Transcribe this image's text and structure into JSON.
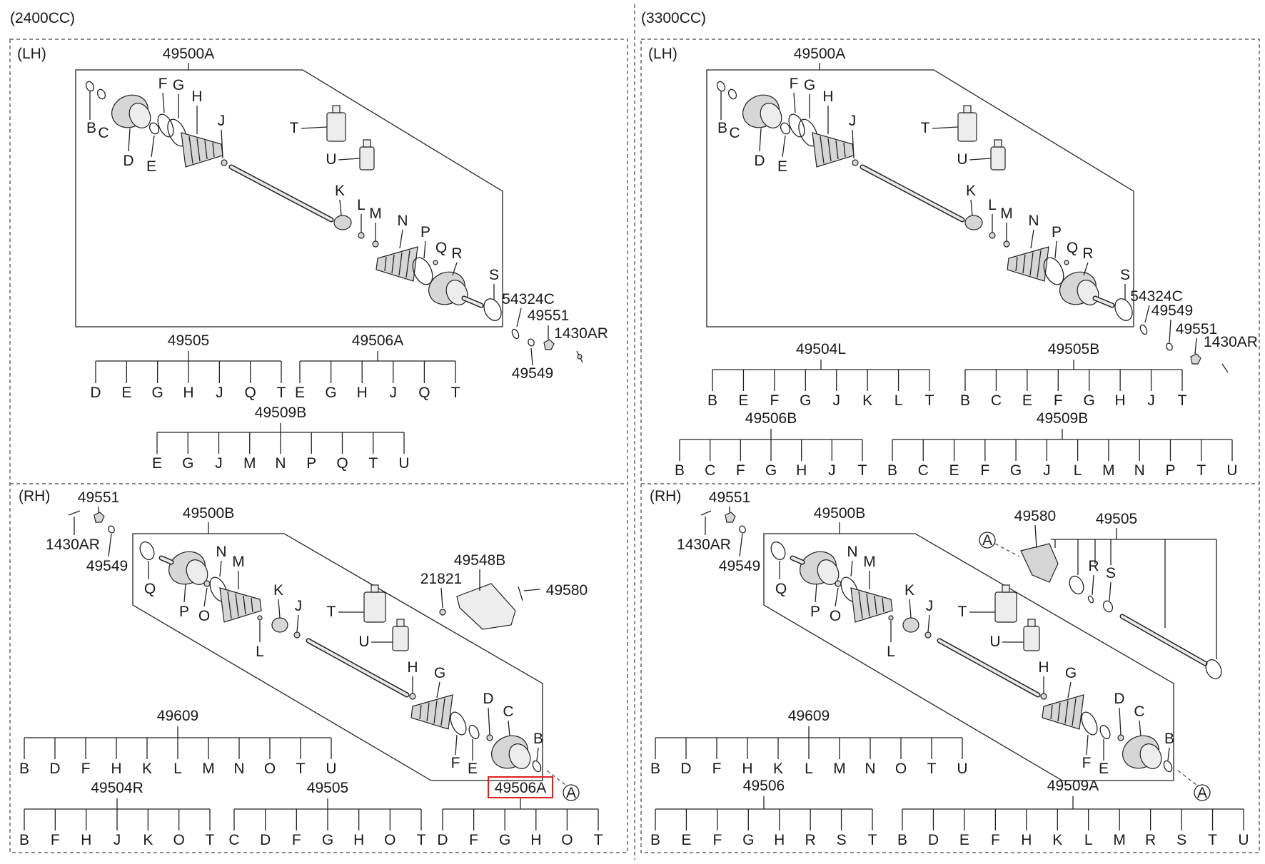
{
  "headers": {
    "left": "(2400CC)",
    "right": "(3300CC)"
  },
  "panels": [
    {
      "id": "tl",
      "side_label": "(LH)",
      "assembly": "49500A",
      "parts": [
        {
          "l": "B"
        },
        {
          "l": "C"
        },
        {
          "l": "D"
        },
        {
          "l": "E"
        },
        {
          "l": "F"
        },
        {
          "l": "G"
        },
        {
          "l": "H"
        },
        {
          "l": "J"
        },
        {
          "l": "K"
        },
        {
          "l": "L"
        },
        {
          "l": "M"
        },
        {
          "l": "N"
        },
        {
          "l": "P"
        },
        {
          "l": "Q"
        },
        {
          "l": "R"
        },
        {
          "l": "S"
        },
        {
          "l": "T"
        },
        {
          "l": "U"
        }
      ],
      "extras": [
        {
          "l": "54324C"
        },
        {
          "l": "49551"
        },
        {
          "l": "1430AR"
        },
        {
          "l": "49549"
        }
      ],
      "kits": [
        {
          "code": "49505",
          "items": [
            "D",
            "E",
            "G",
            "H",
            "J",
            "Q",
            "T"
          ]
        },
        {
          "code": "49506A",
          "items": [
            "E",
            "G",
            "H",
            "J",
            "Q",
            "T"
          ]
        },
        {
          "code": "49509B",
          "items": [
            "E",
            "G",
            "J",
            "M",
            "N",
            "P",
            "Q",
            "T",
            "U"
          ]
        }
      ]
    },
    {
      "id": "tr",
      "side_label": "(LH)",
      "assembly": "49500A",
      "parts": [
        {
          "l": "B"
        },
        {
          "l": "C"
        },
        {
          "l": "D"
        },
        {
          "l": "E"
        },
        {
          "l": "F"
        },
        {
          "l": "G"
        },
        {
          "l": "H"
        },
        {
          "l": "J"
        },
        {
          "l": "K"
        },
        {
          "l": "L"
        },
        {
          "l": "M"
        },
        {
          "l": "N"
        },
        {
          "l": "P"
        },
        {
          "l": "Q"
        },
        {
          "l": "R"
        },
        {
          "l": "S"
        },
        {
          "l": "T"
        },
        {
          "l": "U"
        }
      ],
      "extras": [
        {
          "l": "54324C"
        },
        {
          "l": "49549"
        },
        {
          "l": "49551"
        },
        {
          "l": "1430AR"
        }
      ],
      "kits": [
        {
          "code": "49504L",
          "items": [
            "B",
            "E",
            "F",
            "G",
            "J",
            "K",
            "L",
            "T"
          ]
        },
        {
          "code": "49505B",
          "items": [
            "B",
            "C",
            "E",
            "F",
            "G",
            "H",
            "J",
            "T"
          ]
        },
        {
          "code": "49506B",
          "items": [
            "B",
            "C",
            "F",
            "G",
            "H",
            "J",
            "T"
          ]
        },
        {
          "code": "49509B",
          "items": [
            "B",
            "C",
            "E",
            "F",
            "G",
            "J",
            "L",
            "M",
            "N",
            "P",
            "T",
            "U"
          ]
        }
      ]
    },
    {
      "id": "bl",
      "side_label": "(RH)",
      "assembly": "49500B",
      "parts": [
        {
          "l": "Q"
        },
        {
          "l": "P"
        },
        {
          "l": "O"
        },
        {
          "l": "N"
        },
        {
          "l": "M"
        },
        {
          "l": "L"
        },
        {
          "l": "K"
        },
        {
          "l": "J"
        },
        {
          "l": "T"
        },
        {
          "l": "U"
        },
        {
          "l": "H"
        },
        {
          "l": "G"
        },
        {
          "l": "F"
        },
        {
          "l": "E"
        },
        {
          "l": "D"
        },
        {
          "l": "C"
        },
        {
          "l": "B"
        }
      ],
      "extras": [
        {
          "l": "49551"
        },
        {
          "l": "1430AR"
        },
        {
          "l": "49549"
        },
        {
          "l": "49548B"
        },
        {
          "l": "21821"
        },
        {
          "l": "49580"
        }
      ],
      "marker": "A",
      "kits": [
        {
          "code": "49609",
          "items": [
            "B",
            "D",
            "F",
            "H",
            "K",
            "L",
            "M",
            "N",
            "O",
            "T",
            "U"
          ]
        },
        {
          "code": "49504R",
          "items": [
            "B",
            "F",
            "H",
            "J",
            "K",
            "O",
            "T"
          ]
        },
        {
          "code": "49505",
          "items": [
            "C",
            "D",
            "F",
            "G",
            "H",
            "O",
            "T"
          ]
        },
        {
          "code": "49506A",
          "items": [
            "D",
            "F",
            "G",
            "H",
            "O",
            "T"
          ],
          "highlighted": true
        }
      ]
    },
    {
      "id": "br",
      "side_label": "(RH)",
      "assembly": "49500B",
      "parts": [
        {
          "l": "Q"
        },
        {
          "l": "P"
        },
        {
          "l": "O"
        },
        {
          "l": "N"
        },
        {
          "l": "M"
        },
        {
          "l": "L"
        },
        {
          "l": "K"
        },
        {
          "l": "J"
        },
        {
          "l": "T"
        },
        {
          "l": "U"
        },
        {
          "l": "H"
        },
        {
          "l": "G"
        },
        {
          "l": "F"
        },
        {
          "l": "E"
        },
        {
          "l": "D"
        },
        {
          "l": "C"
        },
        {
          "l": "B"
        }
      ],
      "extras": [
        {
          "l": "49551"
        },
        {
          "l": "1430AR"
        },
        {
          "l": "49549"
        },
        {
          "l": "49580"
        },
        {
          "l": "49505"
        },
        {
          "l": "R"
        },
        {
          "l": "S"
        }
      ],
      "marker": "A",
      "kits": [
        {
          "code": "49609",
          "items": [
            "B",
            "D",
            "F",
            "H",
            "K",
            "L",
            "M",
            "N",
            "O",
            "T",
            "U"
          ]
        },
        {
          "code": "49506",
          "items": [
            "B",
            "E",
            "F",
            "G",
            "H",
            "R",
            "S",
            "T"
          ]
        },
        {
          "code": "49509A",
          "items": [
            "B",
            "D",
            "E",
            "F",
            "H",
            "K",
            "L",
            "M",
            "R",
            "S",
            "T",
            "U"
          ]
        }
      ]
    }
  ]
}
